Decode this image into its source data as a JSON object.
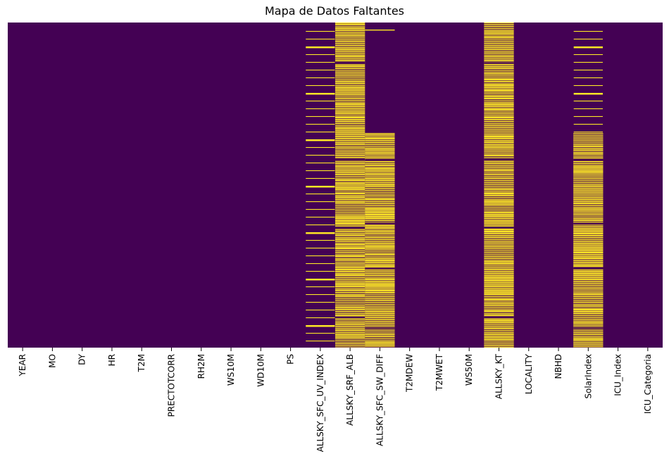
{
  "chart_data": {
    "type": "heatmap",
    "title": "Mapa de Datos Faltantes",
    "xlabel": "",
    "ylabel": "",
    "columns": [
      "YEAR",
      "MO",
      "DY",
      "HR",
      "T2M",
      "PRECTOTCORR",
      "RH2M",
      "WS10M",
      "WD10M",
      "PS",
      "ALLSKY_SFC_UV_INDEX",
      "ALLSKY_SRF_ALB",
      "ALLSKY_SFC_SW_DIFF",
      "T2MDEW",
      "T2MWET",
      "WS50M",
      "ALLSKY_KT",
      "LOCALITY",
      "NBHD",
      "SolarIndex",
      "ICU_Index",
      "ICU_Categoria"
    ],
    "missing_pattern": [
      "none",
      "none",
      "none",
      "none",
      "none",
      "none",
      "none",
      "none",
      "none",
      "none",
      "sparse",
      "dense",
      "dense-second-half",
      "none",
      "none",
      "none",
      "dense",
      "none",
      "none",
      "sparse-then-dense",
      "none",
      "none"
    ],
    "colors": {
      "present": "#440154",
      "missing": "#fde725"
    },
    "grid": false,
    "colorbar": false
  }
}
